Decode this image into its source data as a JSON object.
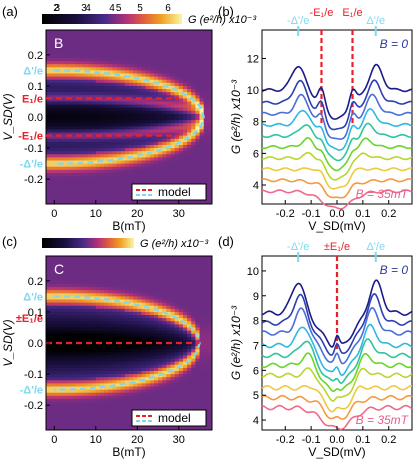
{
  "panels": {
    "a": {
      "tag": "(a)",
      "letter": "B",
      "cbar_ticks": [
        "2",
        "3",
        "4",
        "5",
        "6"
      ],
      "cbar_label": "G (e²/h) x10⁻³",
      "ann": {
        "dp": "Δ'/e",
        "e1": "E₁/e",
        "me1": "-E₁/e",
        "mdp": "-Δ'/e"
      },
      "legend": "model"
    },
    "b": {
      "tag": "(b)",
      "ann": {
        "mdp": "-Δ'/e",
        "me1": "-E₁/e",
        "e1": "E₁/e",
        "dp": "Δ'/e"
      },
      "b0": "B = 0",
      "b35": "B = 35mT"
    },
    "c": {
      "tag": "(c)",
      "letter": "C",
      "cbar_ticks": [
        "3",
        "4",
        "5"
      ],
      "cbar_label": "G (e²/h) x10⁻³",
      "ann": {
        "dp": "Δ'/e",
        "pe1": "±E₁/e",
        "mdp": "-Δ'/e"
      },
      "legend": "model"
    },
    "d": {
      "tag": "(d)",
      "ann": {
        "mdp": "-Δ'/e",
        "pe1": "±E₁/e",
        "dp": "Δ'/e"
      },
      "b0": "B = 0",
      "b35": "B = 35mT"
    }
  },
  "colors": {
    "dashed_red": "#e8202a",
    "dashed_cyan": "#7fd8f0",
    "b0_text": "#2a3aa0",
    "b35_text": "#e8608a"
  },
  "chart_data": [
    {
      "panel": "a",
      "type": "heatmap",
      "xlabel": "B(mT)",
      "ylabel": "V_SD(V)",
      "x_ticks": [
        0,
        10,
        20,
        30
      ],
      "y_ticks": [
        -0.2,
        -0.1,
        0.0,
        0.1,
        0.2
      ],
      "xlim": [
        -2,
        38
      ],
      "ylim": [
        -0.28,
        0.28
      ],
      "clim": [
        2,
        6.5
      ],
      "features": {
        "delta_prime_0": 0.15,
        "E1_0": 0.06,
        "closing_field_mT": 36
      }
    },
    {
      "panel": "b",
      "type": "line",
      "xlabel": "V_SD(mV)",
      "ylabel": "G (e²/h) x10⁻³",
      "x_ticks": [
        -0.2,
        -0.1,
        0.0,
        0.1,
        0.2
      ],
      "y_ticks": [
        4,
        6,
        8,
        10,
        12
      ],
      "xlim": [
        -0.29,
        0.29
      ],
      "ylim": [
        2.8,
        13.8
      ],
      "series": [
        {
          "name": "B = 0",
          "color": "#1a1a8c",
          "offset": 10.0
        },
        {
          "color": "#2c3fb0",
          "offset": 9.2
        },
        {
          "color": "#4a6ed8",
          "offset": 8.5
        },
        {
          "color": "#2fb8e0",
          "offset": 7.8
        },
        {
          "color": "#2ec4a0",
          "offset": 7.1
        },
        {
          "color": "#6ad52a",
          "offset": 6.4
        },
        {
          "color": "#b7d72c",
          "offset": 5.7
        },
        {
          "color": "#f0c840",
          "offset": 5.0
        },
        {
          "color": "#f59a40",
          "offset": 4.3
        },
        {
          "name": "B = 35mT",
          "color": "#f06a8a",
          "offset": 3.6
        }
      ],
      "markers_x": [
        -0.15,
        -0.06,
        0.06,
        0.15
      ]
    },
    {
      "panel": "c",
      "type": "heatmap",
      "xlabel": "B(mT)",
      "ylabel": "V_SD(V)",
      "x_ticks": [
        0,
        10,
        20,
        30
      ],
      "y_ticks": [
        -0.2,
        -0.1,
        0.0,
        0.1,
        0.2
      ],
      "xlim": [
        -2,
        38
      ],
      "ylim": [
        -0.28,
        0.28
      ],
      "clim": [
        2.5,
        5.8
      ],
      "features": {
        "delta_prime_0": 0.15,
        "E1_0": 0.0,
        "closing_field_mT": 35
      }
    },
    {
      "panel": "d",
      "type": "line",
      "xlabel": "V_SD(mV)",
      "ylabel": "G (e²/h) x10⁻³",
      "x_ticks": [
        -0.2,
        -0.1,
        0.0,
        0.1,
        0.2
      ],
      "y_ticks": [
        4,
        5,
        6,
        7,
        8,
        9,
        10
      ],
      "xlim": [
        -0.29,
        0.29
      ],
      "ylim": [
        3.6,
        10.6
      ],
      "series": [
        {
          "name": "B = 0",
          "color": "#1a1a8c",
          "offset": 8.3
        },
        {
          "color": "#2c3fb0",
          "offset": 7.9
        },
        {
          "color": "#4a6ed8",
          "offset": 7.5
        },
        {
          "color": "#2fb8e0",
          "offset": 7.0
        },
        {
          "color": "#2ec4a0",
          "offset": 6.6
        },
        {
          "color": "#6ad52a",
          "offset": 6.2
        },
        {
          "color": "#b7d72c",
          "offset": 5.8
        },
        {
          "color": "#f0c840",
          "offset": 5.3
        },
        {
          "color": "#f59a40",
          "offset": 4.9
        },
        {
          "name": "B = 35mT",
          "color": "#f06a8a",
          "offset": 4.5
        }
      ],
      "markers_x": [
        -0.15,
        0.0,
        0.15
      ]
    }
  ]
}
